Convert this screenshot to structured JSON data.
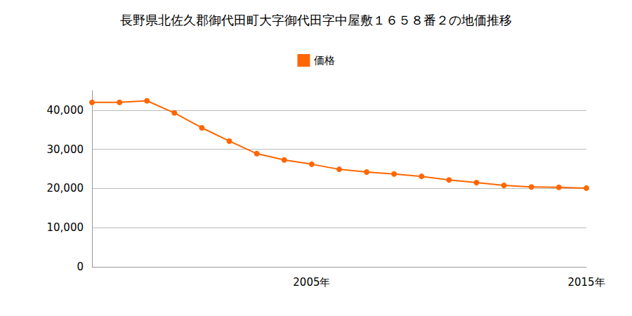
{
  "chart_data": {
    "type": "line",
    "title": "長野県北佐久郡御代田町大字御代田字中屋敷１６５８番２の地価推移",
    "categories": [
      null,
      null,
      null,
      null,
      null,
      null,
      null,
      null,
      "2005年",
      null,
      null,
      null,
      null,
      null,
      null,
      null,
      null,
      null,
      "2015年"
    ],
    "series": [
      {
        "name": "価格",
        "color": "#ff6600",
        "marker": "circle",
        "values": [
          42000,
          42000,
          42400,
          39300,
          35500,
          32100,
          28900,
          27300,
          26200,
          24900,
          24200,
          23700,
          23100,
          22200,
          21500,
          20800,
          20400,
          20300,
          20100
        ]
      }
    ],
    "ylim": [
      0,
      45000
    ],
    "yticks": [
      0,
      {
        "value": 10000,
        "label": "10,000"
      },
      {
        "value": 20000,
        "label": "20,000"
      },
      {
        "value": 30000,
        "label": "30,000"
      },
      {
        "value": 40000,
        "label": "40,000"
      }
    ],
    "grid": true,
    "legend": "top"
  }
}
